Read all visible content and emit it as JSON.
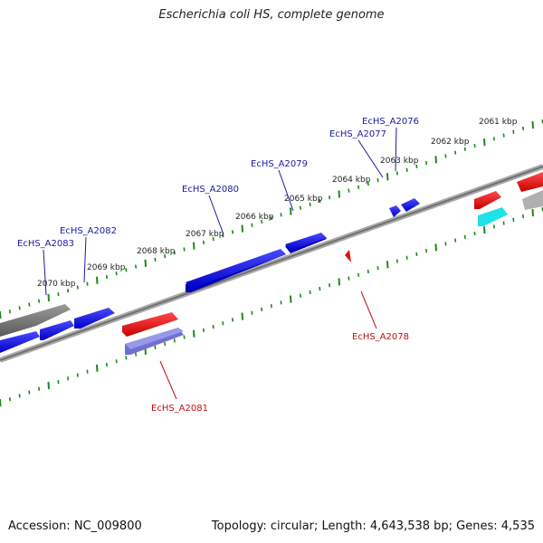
{
  "title": "Escherichia coli HS, complete genome",
  "footer": {
    "accession": "Accession: NC_009800",
    "stats": "Topology: circular; Length: 4,643,538 bp; Genes: 4,535"
  },
  "colors": {
    "forward_gene": "#1010e0",
    "reverse_gene": "#e01010",
    "backbone": "#808080",
    "tick": "#1a8a1a",
    "label_forward": "#1a1aa0",
    "label_reverse": "#c01010",
    "pseudo": "#7070d0",
    "rna": "#20e0e8",
    "gray_block": "#707070"
  },
  "ticks": [
    "2061 kbp",
    "2062 kbp",
    "2063 kbp",
    "2064 kbp",
    "2065 kbp",
    "2066 kbp",
    "2067 kbp",
    "2068 kbp",
    "2069 kbp",
    "2070 kbp"
  ],
  "genes": [
    {
      "id": "EcHS_A2076",
      "strand": "forward"
    },
    {
      "id": "EcHS_A2077",
      "strand": "forward"
    },
    {
      "id": "EcHS_A2078",
      "strand": "reverse"
    },
    {
      "id": "EcHS_A2079",
      "strand": "forward"
    },
    {
      "id": "EcHS_A2080",
      "strand": "forward"
    },
    {
      "id": "EcHS_A2081",
      "strand": "reverse"
    },
    {
      "id": "EcHS_A2082",
      "strand": "forward"
    },
    {
      "id": "EcHS_A2083",
      "strand": "forward"
    }
  ]
}
